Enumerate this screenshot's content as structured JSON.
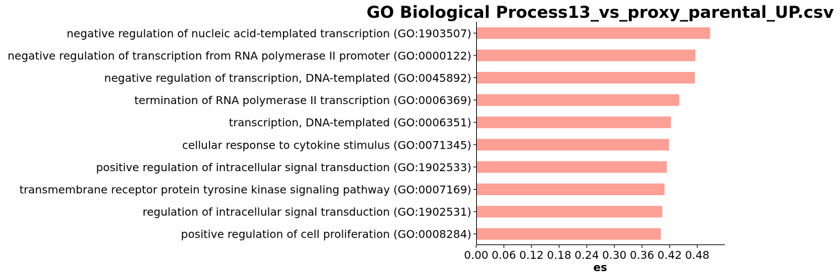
{
  "chart_data": {
    "type": "bar",
    "orientation": "horizontal",
    "title": "GO Biological Process13_vs_proxy_parental_UP.csv",
    "xlabel": "es",
    "ylabel": "",
    "xlim": [
      0,
      0.54
    ],
    "xticks": [
      "0.00",
      "0.06",
      "0.12",
      "0.18",
      "0.24",
      "0.30",
      "0.36",
      "0.42",
      "0.48"
    ],
    "grid": false,
    "bar_color": "#FCA096",
    "categories": [
      "negative regulation of nucleic acid-templated transcription (GO:1903507)",
      "negative regulation of transcription from RNA polymerase II promoter (GO:0000122)",
      "negative regulation of transcription, DNA-templated (GO:0045892)",
      "termination of RNA polymerase II transcription (GO:0006369)",
      "transcription, DNA-templated (GO:0006351)",
      "cellular response to cytokine stimulus (GO:0071345)",
      "positive regulation of intracellular signal transduction (GO:1902533)",
      "transmembrane receptor protein tyrosine kinase signaling pathway (GO:0007169)",
      "regulation of intracellular signal transduction (GO:1902531)",
      "positive regulation of cell proliferation (GO:0008284)"
    ],
    "values": [
      0.508,
      0.476,
      0.475,
      0.441,
      0.423,
      0.419,
      0.414,
      0.409,
      0.404,
      0.401
    ]
  }
}
